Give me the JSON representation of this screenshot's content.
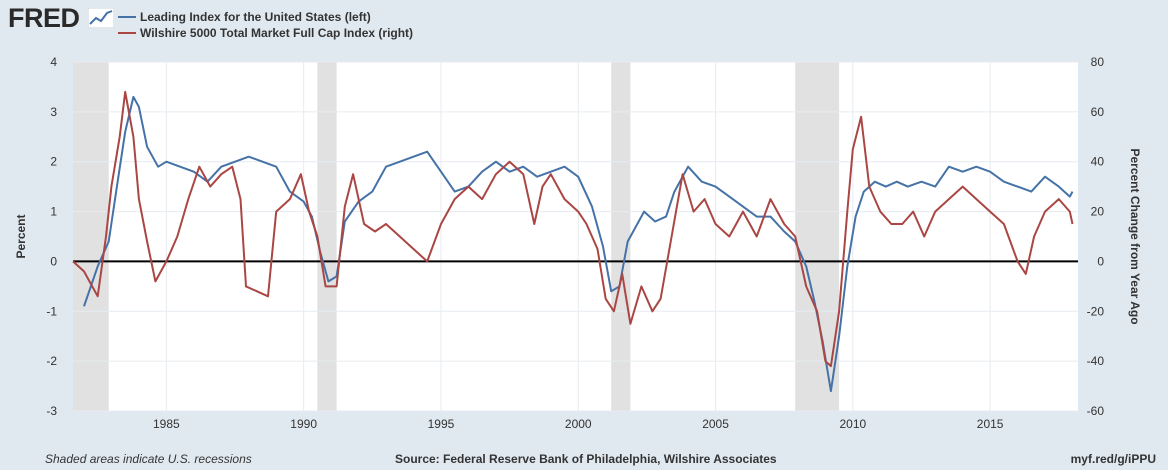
{
  "brand": "FRED",
  "legend": [
    {
      "label": "Leading Index for the United States (left)",
      "color": "#4572a7"
    },
    {
      "label": "Wilshire 5000 Total Market Full Cap Index (right)",
      "color": "#aa4643"
    }
  ],
  "footer": {
    "left": "Shaded areas indicate U.S. recessions",
    "center": "Source: Federal Reserve Bank of Philadelphia, Wilshire Associates",
    "right": "myf.red/g/iPPU"
  },
  "chart_data": {
    "type": "line",
    "title": "",
    "xlabel": "",
    "ylabel": "Percent",
    "y2label": "Percent Change from Year Ago",
    "xlim": [
      1981.6,
      2018.2
    ],
    "ylim": [
      -3,
      4
    ],
    "y2lim": [
      -60,
      80
    ],
    "x_ticks": [
      1985,
      1990,
      1995,
      2000,
      2005,
      2010,
      2015
    ],
    "x_tick_labels": [
      "1985",
      "1990",
      "1995",
      "2000",
      "2005",
      "2010",
      "2015"
    ],
    "y_ticks": [
      -3,
      -2,
      -1,
      0,
      1,
      2,
      3,
      4
    ],
    "y_tick_labels": [
      "-3",
      "-2",
      "-1",
      "0",
      "1",
      "2",
      "3",
      "4"
    ],
    "y2_ticks": [
      -60,
      -40,
      -20,
      0,
      20,
      40,
      60,
      80
    ],
    "y2_tick_labels": [
      "-60",
      "-40",
      "-20",
      "0",
      "20",
      "40",
      "60",
      "80"
    ],
    "recessions": [
      [
        1981.6,
        1982.9
      ],
      [
        1990.5,
        1991.2
      ],
      [
        2001.2,
        2001.9
      ],
      [
        2007.9,
        2009.5
      ]
    ],
    "series": [
      {
        "name": "Leading Index for the United States (left)",
        "axis": "left",
        "color": "#4572a7",
        "x": [
          1982.0,
          1982.5,
          1982.9,
          1983.2,
          1983.5,
          1983.8,
          1984.0,
          1984.3,
          1984.7,
          1985.0,
          1985.5,
          1986.0,
          1986.5,
          1987.0,
          1987.5,
          1988.0,
          1988.5,
          1989.0,
          1989.5,
          1990.0,
          1990.3,
          1990.6,
          1990.9,
          1991.2,
          1991.5,
          1992.0,
          1992.5,
          1993.0,
          1993.5,
          1994.0,
          1994.5,
          1995.0,
          1995.5,
          1996.0,
          1996.5,
          1997.0,
          1997.5,
          1998.0,
          1998.5,
          1999.0,
          1999.5,
          2000.0,
          2000.5,
          2000.9,
          2001.2,
          2001.5,
          2001.8,
          2002.0,
          2002.4,
          2002.8,
          2003.2,
          2003.5,
          2004.0,
          2004.5,
          2005.0,
          2005.5,
          2006.0,
          2006.5,
          2007.0,
          2007.5,
          2007.9,
          2008.3,
          2008.6,
          2008.9,
          2009.2,
          2009.5,
          2009.8,
          2010.1,
          2010.4,
          2010.8,
          2011.2,
          2011.6,
          2012.0,
          2012.5,
          2013.0,
          2013.5,
          2014.0,
          2014.5,
          2015.0,
          2015.5,
          2016.0,
          2016.5,
          2017.0,
          2017.5,
          2017.9,
          2018.0
        ],
        "values": [
          -0.9,
          -0.1,
          0.4,
          1.5,
          2.6,
          3.3,
          3.1,
          2.3,
          1.9,
          2.0,
          1.9,
          1.8,
          1.6,
          1.9,
          2.0,
          2.1,
          2.0,
          1.9,
          1.4,
          1.2,
          0.9,
          0.2,
          -0.4,
          -0.3,
          0.8,
          1.2,
          1.4,
          1.9,
          2.0,
          2.1,
          2.2,
          1.8,
          1.4,
          1.5,
          1.8,
          2.0,
          1.8,
          1.9,
          1.7,
          1.8,
          1.9,
          1.7,
          1.1,
          0.3,
          -0.6,
          -0.5,
          0.4,
          0.6,
          1.0,
          0.8,
          0.9,
          1.4,
          1.9,
          1.6,
          1.5,
          1.3,
          1.1,
          0.9,
          0.9,
          0.6,
          0.4,
          -0.1,
          -0.8,
          -1.6,
          -2.6,
          -1.5,
          -0.1,
          0.9,
          1.4,
          1.6,
          1.5,
          1.6,
          1.5,
          1.6,
          1.5,
          1.9,
          1.8,
          1.9,
          1.8,
          1.6,
          1.5,
          1.4,
          1.7,
          1.5,
          1.3,
          1.4
        ]
      },
      {
        "name": "Wilshire 5000 Total Market Full Cap Index (right)",
        "axis": "right",
        "color": "#aa4643",
        "x": [
          1981.6,
          1982.0,
          1982.5,
          1982.8,
          1983.0,
          1983.3,
          1983.5,
          1983.8,
          1984.0,
          1984.3,
          1984.6,
          1985.0,
          1985.4,
          1985.8,
          1986.2,
          1986.6,
          1987.0,
          1987.4,
          1987.7,
          1987.9,
          1988.3,
          1988.7,
          1989.0,
          1989.5,
          1989.9,
          1990.2,
          1990.5,
          1990.8,
          1991.2,
          1991.5,
          1991.8,
          1992.2,
          1992.6,
          1993.0,
          1993.5,
          1994.0,
          1994.5,
          1995.0,
          1995.5,
          1996.0,
          1996.5,
          1997.0,
          1997.5,
          1998.0,
          1998.4,
          1998.7,
          1999.0,
          1999.5,
          2000.0,
          2000.3,
          2000.7,
          2001.0,
          2001.3,
          2001.6,
          2001.9,
          2002.3,
          2002.7,
          2003.0,
          2003.4,
          2003.8,
          2004.2,
          2004.6,
          2005.0,
          2005.5,
          2006.0,
          2006.5,
          2007.0,
          2007.5,
          2007.9,
          2008.3,
          2008.7,
          2009.0,
          2009.2,
          2009.5,
          2009.8,
          2010.0,
          2010.3,
          2010.6,
          2011.0,
          2011.4,
          2011.8,
          2012.2,
          2012.6,
          2013.0,
          2013.5,
          2014.0,
          2014.5,
          2015.0,
          2015.5,
          2016.0,
          2016.3,
          2016.6,
          2017.0,
          2017.5,
          2017.9,
          2018.0
        ],
        "values": [
          0,
          -4,
          -14,
          10,
          30,
          50,
          68,
          50,
          25,
          8,
          -8,
          0,
          10,
          25,
          38,
          30,
          35,
          38,
          25,
          -10,
          -12,
          -14,
          20,
          25,
          35,
          20,
          10,
          -10,
          -10,
          22,
          35,
          15,
          12,
          15,
          10,
          5,
          0,
          15,
          25,
          30,
          25,
          35,
          40,
          35,
          15,
          30,
          35,
          25,
          20,
          15,
          5,
          -15,
          -20,
          -5,
          -25,
          -10,
          -20,
          -15,
          10,
          35,
          20,
          25,
          15,
          10,
          20,
          10,
          25,
          15,
          10,
          -10,
          -20,
          -40,
          -42,
          -20,
          20,
          45,
          58,
          30,
          20,
          15,
          15,
          20,
          10,
          20,
          25,
          30,
          25,
          20,
          15,
          0,
          -5,
          10,
          20,
          25,
          20,
          15
        ]
      }
    ]
  }
}
